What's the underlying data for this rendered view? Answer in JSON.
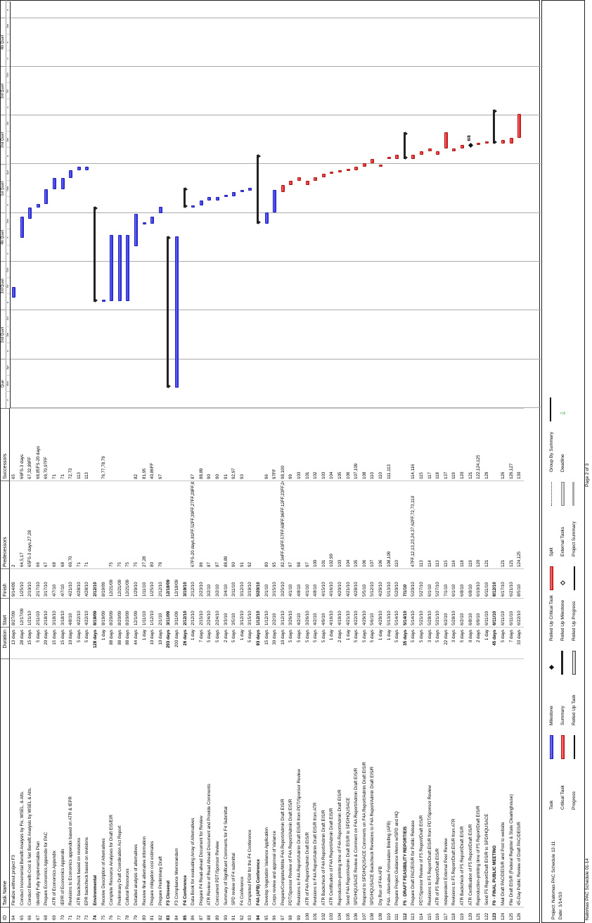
{
  "columns": {
    "id": "ID",
    "name": "Task Name",
    "duration": "Duration",
    "start": "Start",
    "finish": "Finish",
    "predecessors": "Predecessors",
    "successors": "Successors"
  },
  "timescale": {
    "quarters": [
      "Quar",
      "2nd Quart",
      "3rd Quart",
      "4th Quart",
      "1st Quart",
      "2nd Quart",
      "3rd Quart",
      "4th Quart",
      "1st Qu"
    ],
    "months": [
      "e",
      "Mar",
      "Apr",
      "a",
      "Jun",
      "Jul",
      "u",
      "Se",
      "Oct",
      "o",
      "e",
      "Jan",
      "e",
      "Mar",
      "Apr",
      "a",
      "Jun",
      "Jul",
      "u",
      "Se",
      "Oct",
      "o",
      "e",
      "Jan",
      "e"
    ]
  },
  "rows": [
    {
      "id": "64",
      "name": "Finalize without project F3",
      "duration": "13 days",
      "start": "8/27/09",
      "finish": "9/14/09",
      "pred": "2",
      "succ": "65"
    },
    {
      "id": "65",
      "name": "Conduct Incremental Benefit Analysis by Fix, WSEL, & Alts.",
      "duration": "28 days",
      "start": "12/17/09",
      "finish": "1/25/10",
      "pred": "64,5,17",
      "succ": "66FS-3 days"
    },
    {
      "id": "66",
      "name": "Conduct Benefit-Cost & Net Benefit Analysis by WSEL & Alts.",
      "duration": "15 days",
      "start": "1/21/10",
      "finish": "2/10/10",
      "pred": "65FS-3 days,27,28",
      "succ": "67,32,89FF"
    },
    {
      "id": "67",
      "name": "Identify Fully Implementable Plan",
      "duration": "5 days",
      "start": "2/11/10",
      "finish": "2/17/10",
      "pred": "66",
      "succ": "68,85FS-20 days"
    },
    {
      "id": "68",
      "name": "Prepare Economics Appendix for PAC",
      "duration": "20 days",
      "start": "2/18/10",
      "finish": "3/17/10",
      "pred": "67",
      "succ": "69,70,97FF"
    },
    {
      "id": "69",
      "name": "ATR of Economics Appendix",
      "duration": "15 days",
      "start": "3/18/10",
      "finish": "4/7/10",
      "pred": "68",
      "succ": "71"
    },
    {
      "id": "70",
      "name": "IEPR of Economics Appendix",
      "duration": "15 days",
      "start": "3/18/10",
      "finish": "4/7/10",
      "pred": "68",
      "succ": "71"
    },
    {
      "id": "71",
      "name": "Revisions to Economics appendix based on ATR & IEPR",
      "duration": "10 days",
      "start": "4/8/10",
      "finish": "4/21/10",
      "pred": "69,70",
      "succ": "72,73"
    },
    {
      "id": "72",
      "name": "ATR backcheck based on revisions",
      "duration": "5 days",
      "start": "4/22/10",
      "finish": "4/28/10",
      "pred": "71",
      "succ": "113"
    },
    {
      "id": "73",
      "name": "EPR backcheck based on revisions",
      "duration": "5 days",
      "start": "4/22/10",
      "finish": "4/28/10",
      "pred": "71",
      "succ": "113"
    },
    {
      "id": "74",
      "name": "Environmental",
      "duration": "128 days",
      "start": "8/19/09",
      "finish": "2/12/10",
      "pred": "",
      "succ": "",
      "summary": true
    },
    {
      "id": "75",
      "name": "Receive Description of Alternatives",
      "duration": "1 day",
      "start": "8/19/09",
      "finish": "8/19/09",
      "pred": "",
      "succ": "76,77,78,79"
    },
    {
      "id": "76",
      "name": "Complete Resource Analyses for Draft EIS/EIR",
      "duration": "88 days",
      "start": "8/20/09",
      "finish": "12/21/09",
      "pred": "75",
      "succ": ""
    },
    {
      "id": "77",
      "name": "Preliminary Draft Coordination Act Report",
      "duration": "88 days",
      "start": "8/20/09",
      "finish": "12/21/09",
      "pred": "75",
      "succ": ""
    },
    {
      "id": "78",
      "name": "Cultural Resources",
      "duration": "88 days",
      "start": "8/20/09",
      "finish": "12/21/09",
      "pred": "75",
      "succ": ""
    },
    {
      "id": "79",
      "name": "Detailed analysis of alternatives",
      "duration": "44 days",
      "start": "12/1/09",
      "finish": "1/29/10",
      "pred": "75",
      "succ": "82"
    },
    {
      "id": "80",
      "name": "Receive final alternative information",
      "duration": "1 day",
      "start": "1/11/10",
      "finish": "1/11/10",
      "pred": "27,28",
      "succ": "81,95"
    },
    {
      "id": "81",
      "name": "Prepare mitigation cost estimates",
      "duration": "10 days",
      "start": "1/12/10",
      "finish": "1/25/10",
      "pred": "80",
      "succ": "40,86FF"
    },
    {
      "id": "82",
      "name": "Prepare Preliminary Draft",
      "duration": "10 days",
      "start": "2/1/10",
      "finish": "2/12/10",
      "pred": "79",
      "succ": "97"
    },
    {
      "id": "83",
      "name": "F3 Closeout",
      "duration": "203 days",
      "start": "3/11/09",
      "finish": "12/18/09",
      "pred": "",
      "succ": "",
      "summary": true
    },
    {
      "id": "84",
      "name": "F3 Compliance Memorandum",
      "duration": "203 days",
      "start": "3/11/09",
      "finish": "12/18/09",
      "pred": "",
      "succ": ""
    },
    {
      "id": "85",
      "name": "F4 Conference",
      "duration": "26 days",
      "start": "2/12/10",
      "finish": "3/19/10",
      "pred": "",
      "succ": "",
      "summary": true
    },
    {
      "id": "86",
      "name": "Data Book for evaluating Array of Alternatives",
      "duration": "1 day",
      "start": "2/12/10",
      "finish": "2/12/10",
      "pred": "67FS-20 days,81FF,52FF,39FF,27FF,28FF,81FF",
      "succ": "87"
    },
    {
      "id": "87",
      "name": "Prepare F4 Read-ahead Document for Review",
      "duration": "7 days",
      "start": "2/15/10",
      "finish": "2/23/10",
      "pred": "86",
      "succ": "88,89"
    },
    {
      "id": "88",
      "name": "ATR Review of Read Ahead Document and Provide Comments",
      "duration": "5 days",
      "start": "2/24/10",
      "finish": "3/2/10",
      "pred": "87",
      "succ": "90"
    },
    {
      "id": "89",
      "name": "Concurrent PDT/Sponsor Review",
      "duration": "5 days",
      "start": "2/24/10",
      "finish": "3/2/10",
      "pred": "87",
      "succ": "90"
    },
    {
      "id": "90",
      "name": "Summary of Significant Comments for F4 Submittal",
      "duration": "2 days",
      "start": "3/3/10",
      "finish": "3/4/10",
      "pred": "88,89",
      "succ": "91"
    },
    {
      "id": "91",
      "name": "SPD review of F4 submittal",
      "duration": "5 days",
      "start": "3/5/10",
      "finish": "3/11/10",
      "pred": "90",
      "succ": "92,97"
    },
    {
      "id": "92",
      "name": "F4 Conference",
      "duration": "1 day",
      "start": "3/12/10",
      "finish": "3/12/10",
      "pred": "91",
      "succ": "93"
    },
    {
      "id": "93",
      "name": "Completed PGM for the F4 Conference",
      "duration": "5 days",
      "start": "3/15/10",
      "finish": "3/19/10",
      "pred": "92",
      "succ": ""
    },
    {
      "id": "94",
      "name": "F4A (AFB) Conference",
      "duration": "93 days",
      "start": "1/12/10",
      "finish": "5/20/10",
      "pred": "",
      "succ": "",
      "summary": true
    },
    {
      "id": "95",
      "name": "Develop Vegetation Variance Application",
      "duration": "15 days",
      "start": "1/12/10",
      "finish": "2/1/10",
      "pred": "80",
      "succ": "96"
    },
    {
      "id": "96",
      "name": "Corps review and approval of Variance",
      "duration": "30 days",
      "start": "2/2/10",
      "finish": "3/15/10",
      "pred": "95",
      "succ": "97FF"
    },
    {
      "id": "97",
      "name": "Prepare/Complete/Write F4A Report/Admin Draft EIS/R",
      "duration": "10 days",
      "start": "3/12/10",
      "finish": "3/25/10",
      "pred": "82,34FF,43FF,57FF,68FF,96FF,12FF,23FF,24FF,13FF,91",
      "succ": "98,100"
    },
    {
      "id": "98",
      "name": "PDT/Sponsor Review of F4A Report/Admin Draft EIS/R",
      "duration": "5 days",
      "start": "3/26/10",
      "finish": "4/1/10",
      "pred": "97",
      "succ": "99"
    },
    {
      "id": "99",
      "name": "Revisions to F4A Report/Admin Draft EIS/R from PDT/Sponsor Review",
      "duration": "5 days",
      "start": "4/2/10",
      "finish": "4/8/10",
      "pred": "98",
      "succ": "103"
    },
    {
      "id": "100",
      "name": "ATR of F4A Report/Admin Draft EIS/R",
      "duration": "5 days",
      "start": "3/26/10",
      "finish": "4/1/10",
      "pred": "97",
      "succ": "101"
    },
    {
      "id": "101",
      "name": "Revisions to F4A Report/Admin Draft EIS/R from ATR",
      "duration": "5 days",
      "start": "4/2/10",
      "finish": "4/8/10",
      "pred": "100",
      "succ": "102"
    },
    {
      "id": "102",
      "name": "ATR Backcheck of F4A Report/Admin Draft EIS/R",
      "duration": "5 days",
      "start": "4/9/10",
      "finish": "4/15/10",
      "pred": "101",
      "succ": "103"
    },
    {
      "id": "103",
      "name": "ATR Certification of F4A Report/Admin Draft EIS/R",
      "duration": "1 day",
      "start": "4/16/10",
      "finish": "4/16/10",
      "pred": "102,99",
      "succ": "104"
    },
    {
      "id": "104",
      "name": "Reproduction-printing time of F4A Report/Admin Draft EIS/R",
      "duration": "2 days",
      "start": "4/19/10",
      "finish": "4/20/10",
      "pred": "103",
      "succ": "105"
    },
    {
      "id": "105",
      "name": "Send F4A Report/Admin Draft EIS/R to SPD/HQUSACE",
      "duration": "1 day",
      "start": "4/21/10",
      "finish": "4/21/10",
      "pred": "104",
      "succ": "106"
    },
    {
      "id": "106",
      "name": "SPD/HQUSACE Review & Comment on F4A Report/Admin Draft EIS/R",
      "duration": "5 days",
      "start": "4/22/10",
      "finish": "4/28/10",
      "pred": "105",
      "succ": "107,109"
    },
    {
      "id": "107",
      "name": "Respond to SPD/HQUSACE Comments on F4A Report/Admin Draft EIS/R",
      "duration": "5 days",
      "start": "4/29/10",
      "finish": "5/5/10",
      "pred": "106",
      "succ": "108"
    },
    {
      "id": "108",
      "name": "SPD/HQUSACE Backcheck Revisions to F4A Report/Admin Draft EIS/R",
      "duration": "5 days",
      "start": "5/6/10",
      "finish": "5/12/10",
      "pred": "107",
      "succ": "110"
    },
    {
      "id": "109",
      "name": "Dry Run of F4A AFB",
      "duration": "1 day",
      "start": "4/29/10",
      "finish": "4/29/10",
      "pred": "106",
      "succ": "110"
    },
    {
      "id": "110",
      "name": "F4A - Alternative Formulation Briefing (AFB)",
      "duration": "1 day",
      "start": "5/13/10",
      "finish": "5/13/10",
      "pred": "108,109",
      "succ": "111,113"
    },
    {
      "id": "111",
      "name": "Prepare Project Guidance Memo w/SPD and HQ",
      "duration": "5 days",
      "start": "5/14/10",
      "finish": "5/20/10",
      "pred": "110",
      "succ": ""
    },
    {
      "id": "112",
      "name": "F5 - DRAFT FEASIBILITY REPORT/EIS",
      "duration": "35 days",
      "start": "5/14/10",
      "finish": "7/1/10",
      "pred": "",
      "succ": "",
      "summary": true
    },
    {
      "id": "113",
      "name": "Prepare Draft PAC/EIS/R for Public Release",
      "duration": "5 days",
      "start": "5/14/10",
      "finish": "5/20/10",
      "pred": "47FF,12,13,23,24,37,62FF,72,73,110",
      "succ": "114,116"
    },
    {
      "id": "114",
      "name": "PDT/Sponsor Review of F5 Report/Draft EIS/R",
      "duration": "5 days",
      "start": "5/21/10",
      "finish": "5/27/10",
      "pred": "113",
      "succ": "115"
    },
    {
      "id": "115",
      "name": "Revisions to F5 Report/Draft EIS/R from PDT/Sponsor Review",
      "duration": "3 days",
      "start": "5/28/10",
      "finish": "6/1/10",
      "pred": "114",
      "succ": "117"
    },
    {
      "id": "116",
      "name": "ATR of F5 Report/Draft EIS/R",
      "duration": "5 days",
      "start": "5/21/10",
      "finish": "5/27/10",
      "pred": "113",
      "succ": "118"
    },
    {
      "id": "117",
      "name": "Independent External Peer Review",
      "duration": "22 days",
      "start": "6/2/10",
      "finish": "7/1/10",
      "pred": "115",
      "succ": "137"
    },
    {
      "id": "118",
      "name": "Revisions to F5 Report/Draft EIS/R from ATR",
      "duration": "3 days",
      "start": "5/28/10",
      "finish": "6/1/10",
      "pred": "116",
      "succ": "119"
    },
    {
      "id": "119",
      "name": "ATR Backcheck of F5 Report/Draft EIS/R",
      "duration": "5 days",
      "start": "6/2/10",
      "finish": "6/8/10",
      "pred": "118",
      "succ": "120"
    },
    {
      "id": "120",
      "name": "ATR Certification of F5 Report/Draft EIS/R",
      "duration": "0 days",
      "start": "6/8/10",
      "finish": "6/8/10",
      "pred": "119",
      "succ": "121"
    },
    {
      "id": "121",
      "name": "Reproduction-printing time of F5 Report/Draft EIS/R",
      "duration": "2 days",
      "start": "6/9/10",
      "finish": "6/10/10",
      "pred": "120",
      "succ": "122,124,125"
    },
    {
      "id": "122",
      "name": "Send F5 Report/Draft EIS/R to SPD/HQUSACE",
      "duration": "1 day",
      "start": "6/11/10",
      "finish": "6/11/10",
      "pred": "121",
      "succ": "129"
    },
    {
      "id": "123",
      "name": "F6 - FINAL PUBLIC MEETING",
      "duration": "45 days",
      "start": "6/11/10",
      "finish": "8/12/10",
      "pred": "",
      "succ": "",
      "summary": true
    },
    {
      "id": "124",
      "name": "Mail Draft PAC/DEIS/R and Post to website",
      "duration": "5 days",
      "start": "6/11/10",
      "finish": "6/17/10",
      "pred": "121",
      "succ": "126"
    },
    {
      "id": "125",
      "name": "File Draft EIS/R (Federal Register & State Clearinghouse)",
      "duration": "7 days",
      "start": "6/11/10",
      "finish": "6/21/10",
      "pred": "121",
      "succ": "126,127"
    },
    {
      "id": "126",
      "name": "45-Day Public Review of Draft PAC/DEIS/R",
      "duration": "33 days",
      "start": "6/22/10",
      "finish": "8/5/10",
      "pred": "124,125",
      "succ": "130"
    }
  ],
  "milestone_label": "6/8",
  "legend": {
    "project_line": "Project: Natomas PAC Schedule 12-11",
    "date_line": "Date: 1/14/10",
    "items": [
      "Task",
      "Critical Task",
      "Progress",
      "Milestone",
      "Summary",
      "Rolled Up Task",
      "Rolled Up Critical Task",
      "Rolled Up Milestone",
      "Rolled Up Progress",
      "Split",
      "External Tasks",
      "Project Summary",
      "Group By Summary",
      "Deadline"
    ]
  },
  "footer": {
    "page": "Page 2 of 3",
    "doc": "Natomas PAC Schedule 01-14"
  }
}
